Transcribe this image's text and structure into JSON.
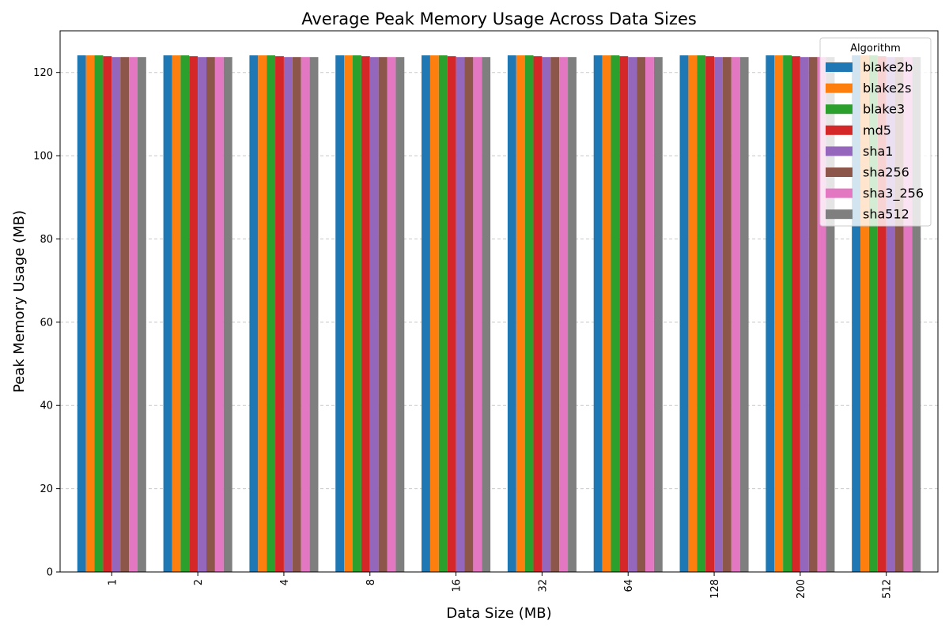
{
  "chart_data": {
    "type": "bar",
    "title": "Average Peak Memory Usage Across Data Sizes",
    "xlabel": "Data Size (MB)",
    "ylabel": "Peak Memory Usage (MB)",
    "categories": [
      "1",
      "2",
      "4",
      "8",
      "16",
      "32",
      "64",
      "128",
      "200",
      "512"
    ],
    "ylim": [
      0,
      130
    ],
    "yticks": [
      0,
      20,
      40,
      60,
      80,
      100,
      120
    ],
    "grid": "y-dashed",
    "legend": {
      "title": "Algorithm",
      "placement": "top-right"
    },
    "series": [
      {
        "name": "blake2b",
        "color": "#1f77b4",
        "values": [
          124.1,
          124.1,
          124.1,
          124.1,
          124.1,
          124.1,
          124.1,
          124.1,
          124.1,
          124.1
        ]
      },
      {
        "name": "blake2s",
        "color": "#ff7f0e",
        "values": [
          124.1,
          124.1,
          124.1,
          124.1,
          124.1,
          124.1,
          124.1,
          124.1,
          124.1,
          124.1
        ]
      },
      {
        "name": "blake3",
        "color": "#2ca02c",
        "values": [
          124.1,
          124.1,
          124.1,
          124.1,
          124.1,
          124.1,
          124.1,
          124.1,
          124.1,
          124.1
        ]
      },
      {
        "name": "md5",
        "color": "#d62728",
        "values": [
          123.9,
          123.9,
          123.9,
          123.9,
          123.9,
          123.9,
          123.9,
          123.9,
          123.9,
          123.9
        ]
      },
      {
        "name": "sha1",
        "color": "#9467bd",
        "values": [
          123.7,
          123.7,
          123.7,
          123.7,
          123.7,
          123.7,
          123.7,
          123.7,
          123.7,
          123.7
        ]
      },
      {
        "name": "sha256",
        "color": "#8c564b",
        "values": [
          123.7,
          123.7,
          123.7,
          123.7,
          123.7,
          123.7,
          123.7,
          123.7,
          123.7,
          123.7
        ]
      },
      {
        "name": "sha3_256",
        "color": "#e377c2",
        "values": [
          123.7,
          123.7,
          123.7,
          123.7,
          123.7,
          123.7,
          123.7,
          123.7,
          123.7,
          123.7
        ]
      },
      {
        "name": "sha512",
        "color": "#7f7f7f",
        "values": [
          123.7,
          123.7,
          123.7,
          123.7,
          123.7,
          123.7,
          123.7,
          123.7,
          123.7,
          123.7
        ]
      }
    ]
  }
}
